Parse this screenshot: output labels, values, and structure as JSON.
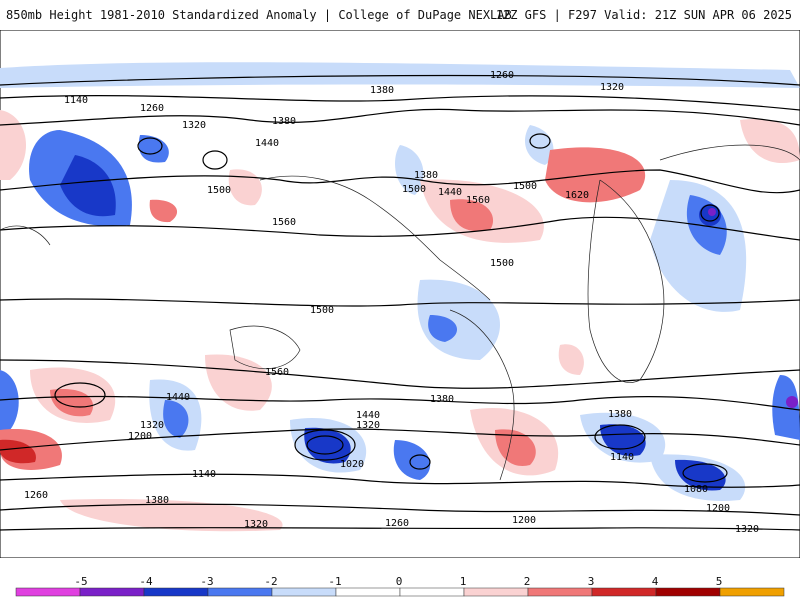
{
  "header": {
    "title": "850mb Height 1981-2010 Standardized Anomaly | College of DuPage NEXLAB",
    "run_info": "12Z GFS | F297 Valid: 21Z SUN APR 06 2025"
  },
  "colors": {
    "background": "#ffffff",
    "neg5": "#e040e0",
    "neg4": "#7a20c8",
    "neg3": "#1838c8",
    "neg2": "#4a78f0",
    "neg1": "#c8dcfa",
    "pos1": "#fad2d2",
    "pos2": "#f07878",
    "pos3": "#d02828",
    "pos4": "#a00000",
    "pos5": "#f0a000",
    "contour": "#000000"
  },
  "colorbar": {
    "ticks": [
      "-5",
      "-4",
      "-3",
      "-2",
      "-1",
      "0",
      "1",
      "2",
      "3",
      "4",
      "5"
    ]
  },
  "contour_labels": [
    "1260",
    "1140",
    "1380",
    "1320",
    "1260",
    "1320",
    "1440",
    "1380",
    "1500",
    "1560",
    "1620",
    "1500",
    "1500",
    "1380",
    "1440",
    "1560",
    "1500",
    "1500",
    "1560",
    "1440",
    "1440",
    "1380",
    "1320",
    "1320",
    "1200",
    "1140",
    "1140",
    "1080",
    "1020",
    "1200",
    "1260",
    "1380",
    "1380",
    "1320",
    "1260",
    "1200",
    "1320"
  ]
}
